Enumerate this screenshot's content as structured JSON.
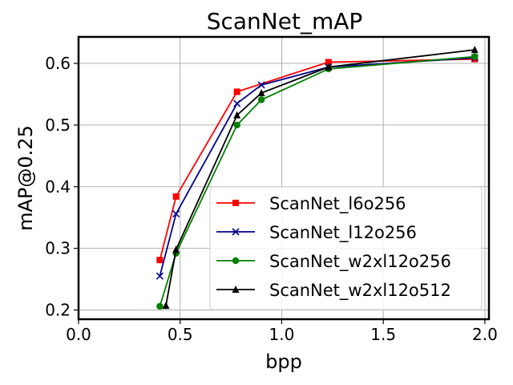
{
  "chart_data": {
    "type": "line",
    "title": "ScanNet_mAP",
    "xlabel": "bpp",
    "ylabel": "mAP@0.25",
    "xlim": [
      0.0,
      2.02
    ],
    "ylim": [
      0.185,
      0.643
    ],
    "xticks": [
      0.0,
      0.5,
      1.0,
      1.5,
      2.0
    ],
    "xtick_labels": [
      "0.0",
      "0.5",
      "1.0",
      "1.5",
      "2.0"
    ],
    "yticks": [
      0.2,
      0.3,
      0.4,
      0.5,
      0.6
    ],
    "ytick_labels": [
      "0.2",
      "0.3",
      "0.4",
      "0.5",
      "0.6"
    ],
    "grid": true,
    "legend_position": "lower-right",
    "series": [
      {
        "name": "ScanNet_l6o256",
        "color": "#ff0000",
        "marker": "square",
        "x": [
          0.4,
          0.48,
          0.78,
          1.23,
          1.95
        ],
        "y": [
          0.281,
          0.384,
          0.554,
          0.602,
          0.607
        ]
      },
      {
        "name": "ScanNet_l12o256",
        "color": "#00008b",
        "marker": "x",
        "x": [
          0.4,
          0.48,
          0.78,
          0.9,
          1.23,
          1.95
        ],
        "y": [
          0.255,
          0.356,
          0.535,
          0.565,
          0.594,
          0.609
        ]
      },
      {
        "name": "ScanNet_w2xl12o256",
        "color": "#008000",
        "marker": "circle",
        "x": [
          0.4,
          0.48,
          0.78,
          0.9,
          1.23,
          1.95
        ],
        "y": [
          0.206,
          0.292,
          0.5,
          0.541,
          0.591,
          0.611
        ]
      },
      {
        "name": "ScanNet_w2xl12o512",
        "color": "#000000",
        "marker": "triangle",
        "x": [
          0.43,
          0.48,
          0.78,
          0.9,
          1.23,
          1.95
        ],
        "y": [
          0.207,
          0.298,
          0.516,
          0.552,
          0.594,
          0.622
        ]
      }
    ]
  }
}
